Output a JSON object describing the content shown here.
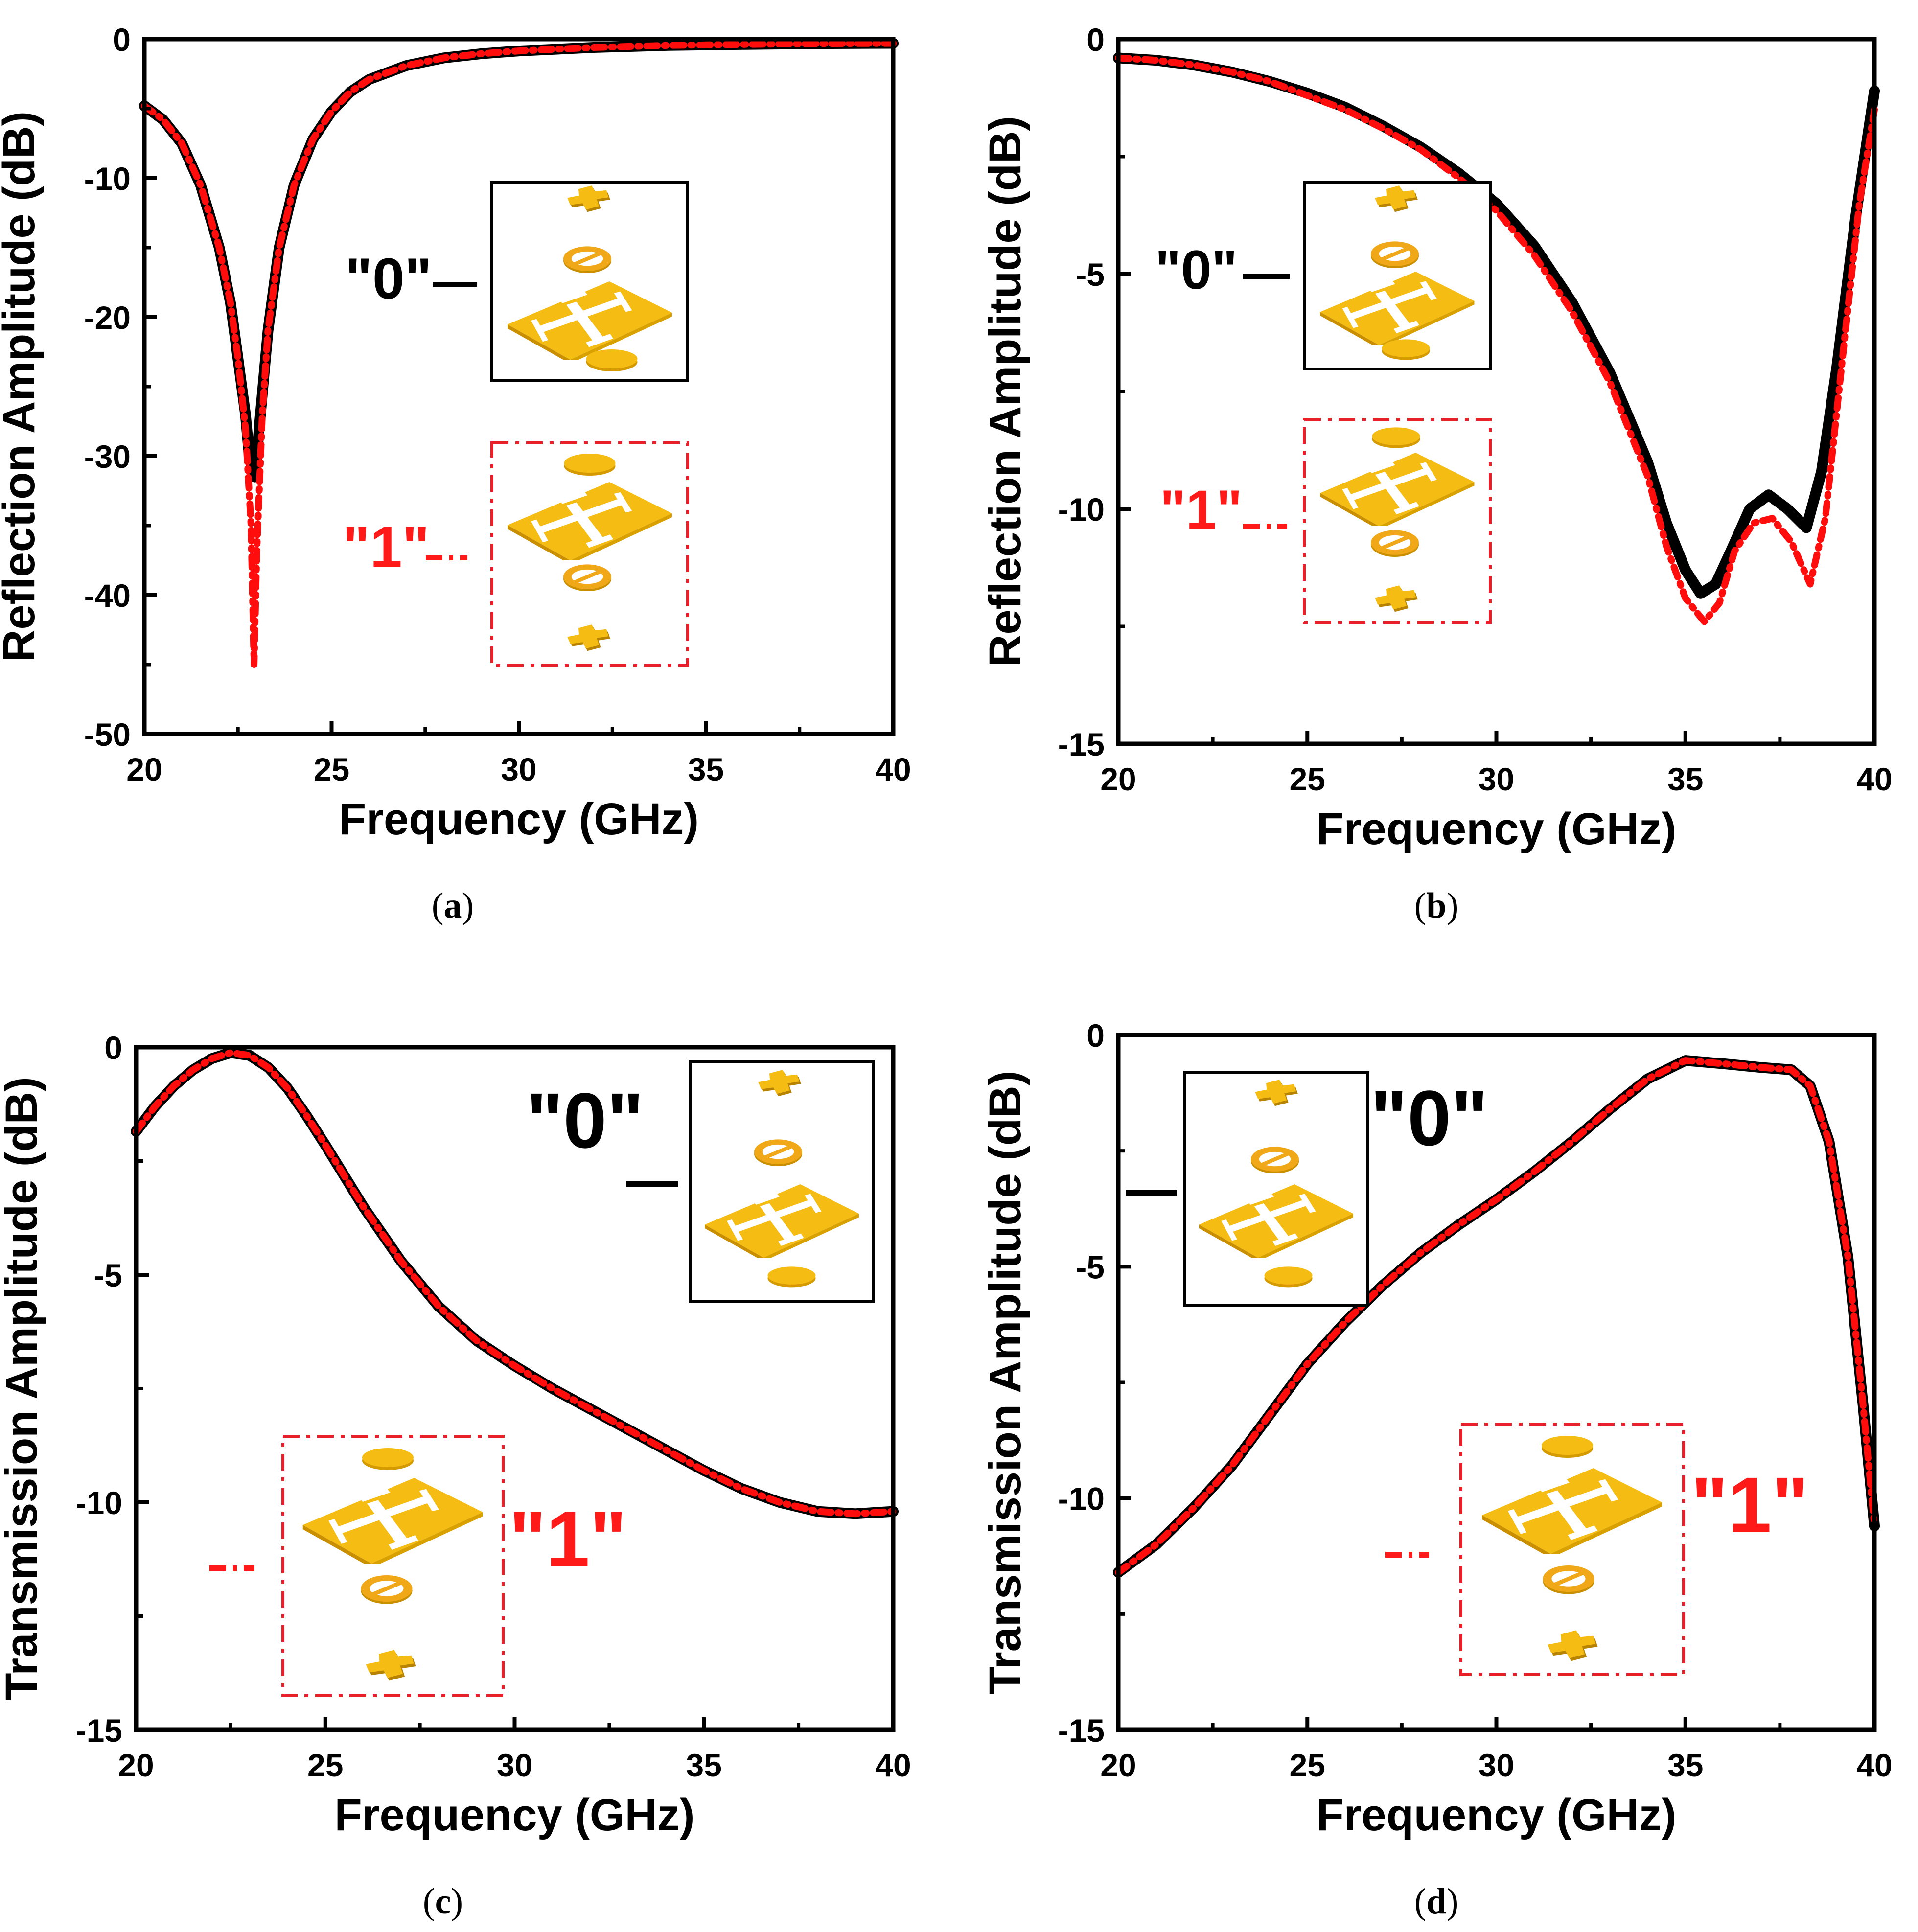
{
  "figure": {
    "colors": {
      "state0": "#000000",
      "state1": "#ff0d0d",
      "gold": "#f5bc14",
      "gold_dark": "#c98f00",
      "gold_ring": "#f0a818",
      "insert_frame1": "#e8202a"
    },
    "inset_labels": {
      "zero": "\"0\"",
      "one": "\"1\""
    },
    "inset_icons": [
      "cross-patch-icon",
      "slotted-ring-icon",
      "cross-slot-plate-icon",
      "disc-icon"
    ]
  },
  "chart_data": [
    {
      "id": "a",
      "type": "line",
      "caption_letter": "a",
      "xlabel": "Frequency (GHz)",
      "ylabel": "Reflection Amplitude (dB)",
      "xlim": [
        20,
        40
      ],
      "ylim": [
        -50,
        0
      ],
      "xticks": [
        20,
        25,
        30,
        35,
        40
      ],
      "yticks": [
        0,
        -10,
        -20,
        -30,
        -40,
        -50
      ],
      "series": [
        {
          "name": "\"0\"",
          "style": "solid",
          "points": [
            [
              20,
              -4.8
            ],
            [
              20.5,
              -5.8
            ],
            [
              21,
              -7.5
            ],
            [
              21.5,
              -10.5
            ],
            [
              22,
              -15
            ],
            [
              22.3,
              -19
            ],
            [
              22.5,
              -23
            ],
            [
              22.7,
              -27
            ],
            [
              22.8,
              -30
            ],
            [
              22.95,
              -31.5
            ],
            [
              23.1,
              -27
            ],
            [
              23.3,
              -21
            ],
            [
              23.6,
              -15
            ],
            [
              24,
              -10.5
            ],
            [
              24.5,
              -7.2
            ],
            [
              25,
              -5.2
            ],
            [
              25.5,
              -3.8
            ],
            [
              26,
              -2.9
            ],
            [
              27,
              -1.9
            ],
            [
              28,
              -1.35
            ],
            [
              29,
              -1.05
            ],
            [
              30,
              -0.85
            ],
            [
              32,
              -0.6
            ],
            [
              34,
              -0.45
            ],
            [
              36,
              -0.38
            ],
            [
              38,
              -0.32
            ],
            [
              40,
              -0.3
            ]
          ]
        },
        {
          "name": "\"1\"",
          "style": "dashdot",
          "points": [
            [
              20,
              -4.8
            ],
            [
              20.5,
              -5.8
            ],
            [
              21,
              -7.5
            ],
            [
              21.5,
              -10.5
            ],
            [
              22,
              -15
            ],
            [
              22.3,
              -19
            ],
            [
              22.5,
              -23
            ],
            [
              22.7,
              -28
            ],
            [
              22.85,
              -35
            ],
            [
              22.93,
              -45
            ],
            [
              23.0,
              -37
            ],
            [
              23.15,
              -27
            ],
            [
              23.3,
              -21
            ],
            [
              23.6,
              -15
            ],
            [
              24,
              -10.5
            ],
            [
              24.5,
              -7.2
            ],
            [
              25,
              -5.2
            ],
            [
              25.5,
              -3.8
            ],
            [
              26,
              -2.9
            ],
            [
              27,
              -1.9
            ],
            [
              28,
              -1.35
            ],
            [
              29,
              -1.05
            ],
            [
              30,
              -0.85
            ],
            [
              32,
              -0.6
            ],
            [
              34,
              -0.45
            ],
            [
              36,
              -0.38
            ],
            [
              38,
              -0.32
            ],
            [
              40,
              -0.3
            ]
          ]
        }
      ]
    },
    {
      "id": "b",
      "type": "line",
      "caption_letter": "b",
      "xlabel": "Frequency (GHz)",
      "ylabel": "Reflection Amplitude (dB)",
      "xlim": [
        20,
        40
      ],
      "ylim": [
        -15,
        0
      ],
      "xticks": [
        20,
        25,
        30,
        35,
        40
      ],
      "yticks": [
        0,
        -5,
        -10,
        -15
      ],
      "series": [
        {
          "name": "\"0\"",
          "style": "solid",
          "points": [
            [
              20,
              -0.4
            ],
            [
              21,
              -0.45
            ],
            [
              22,
              -0.55
            ],
            [
              23,
              -0.7
            ],
            [
              24,
              -0.9
            ],
            [
              25,
              -1.15
            ],
            [
              26,
              -1.45
            ],
            [
              27,
              -1.85
            ],
            [
              28,
              -2.3
            ],
            [
              29,
              -2.85
            ],
            [
              30,
              -3.5
            ],
            [
              31,
              -4.4
            ],
            [
              32,
              -5.6
            ],
            [
              33,
              -7.1
            ],
            [
              34,
              -9.0
            ],
            [
              34.5,
              -10.3
            ],
            [
              35,
              -11.3
            ],
            [
              35.4,
              -11.8
            ],
            [
              35.8,
              -11.6
            ],
            [
              36.2,
              -10.9
            ],
            [
              36.7,
              -10.0
            ],
            [
              37.2,
              -9.7
            ],
            [
              37.7,
              -10.0
            ],
            [
              38.2,
              -10.4
            ],
            [
              38.6,
              -9.2
            ],
            [
              39,
              -7.0
            ],
            [
              39.5,
              -3.8
            ],
            [
              40,
              -1.1
            ]
          ]
        },
        {
          "name": "\"1\"",
          "style": "dashdot",
          "points": [
            [
              20,
              -0.4
            ],
            [
              21,
              -0.45
            ],
            [
              22,
              -0.55
            ],
            [
              23,
              -0.7
            ],
            [
              24,
              -0.9
            ],
            [
              25,
              -1.2
            ],
            [
              26,
              -1.5
            ],
            [
              27,
              -1.9
            ],
            [
              28,
              -2.35
            ],
            [
              29,
              -2.95
            ],
            [
              30,
              -3.65
            ],
            [
              31,
              -4.6
            ],
            [
              32,
              -5.8
            ],
            [
              33,
              -7.3
            ],
            [
              34,
              -9.3
            ],
            [
              34.5,
              -10.8
            ],
            [
              35,
              -11.9
            ],
            [
              35.5,
              -12.4
            ],
            [
              35.9,
              -12.0
            ],
            [
              36.3,
              -10.9
            ],
            [
              36.8,
              -10.3
            ],
            [
              37.3,
              -10.2
            ],
            [
              37.8,
              -10.7
            ],
            [
              38.3,
              -11.6
            ],
            [
              38.7,
              -10.2
            ],
            [
              39.1,
              -7.2
            ],
            [
              39.6,
              -3.5
            ],
            [
              40,
              -1.5
            ]
          ]
        }
      ]
    },
    {
      "id": "c",
      "type": "line",
      "caption_letter": "c",
      "xlabel": "Frequency (GHz)",
      "ylabel": "Transmission Amplitude (dB)",
      "xlim": [
        20,
        40
      ],
      "ylim": [
        -15,
        0
      ],
      "xticks": [
        20,
        25,
        30,
        35,
        40
      ],
      "yticks": [
        0,
        -5,
        -10,
        -15
      ],
      "series": [
        {
          "name": "\"0\"",
          "style": "solid",
          "points": [
            [
              20,
              -1.85
            ],
            [
              20.5,
              -1.3
            ],
            [
              21,
              -0.85
            ],
            [
              21.5,
              -0.5
            ],
            [
              22,
              -0.25
            ],
            [
              22.5,
              -0.12
            ],
            [
              23,
              -0.18
            ],
            [
              23.5,
              -0.45
            ],
            [
              24,
              -0.9
            ],
            [
              24.5,
              -1.5
            ],
            [
              25,
              -2.15
            ],
            [
              26,
              -3.5
            ],
            [
              27,
              -4.7
            ],
            [
              28,
              -5.7
            ],
            [
              29,
              -6.45
            ],
            [
              30,
              -7.0
            ],
            [
              31,
              -7.5
            ],
            [
              32,
              -7.95
            ],
            [
              33,
              -8.4
            ],
            [
              34,
              -8.85
            ],
            [
              35,
              -9.3
            ],
            [
              36,
              -9.7
            ],
            [
              37,
              -10.0
            ],
            [
              38,
              -10.2
            ],
            [
              39,
              -10.25
            ],
            [
              40,
              -10.2
            ]
          ]
        },
        {
          "name": "\"1\"",
          "style": "dashdot",
          "points": [
            [
              20,
              -1.85
            ],
            [
              20.5,
              -1.3
            ],
            [
              21,
              -0.85
            ],
            [
              21.5,
              -0.5
            ],
            [
              22,
              -0.25
            ],
            [
              22.5,
              -0.12
            ],
            [
              23,
              -0.18
            ],
            [
              23.5,
              -0.45
            ],
            [
              24,
              -0.9
            ],
            [
              24.5,
              -1.5
            ],
            [
              25,
              -2.15
            ],
            [
              26,
              -3.5
            ],
            [
              27,
              -4.7
            ],
            [
              28,
              -5.7
            ],
            [
              29,
              -6.45
            ],
            [
              30,
              -7.0
            ],
            [
              31,
              -7.5
            ],
            [
              32,
              -7.95
            ],
            [
              33,
              -8.4
            ],
            [
              34,
              -8.85
            ],
            [
              35,
              -9.3
            ],
            [
              36,
              -9.7
            ],
            [
              37,
              -10.0
            ],
            [
              38,
              -10.2
            ],
            [
              39,
              -10.25
            ],
            [
              40,
              -10.2
            ]
          ]
        }
      ]
    },
    {
      "id": "d",
      "type": "line",
      "caption_letter": "d",
      "xlabel": "Frequency (GHz)",
      "ylabel": "Transmission Amplitude (dB)",
      "xlim": [
        20,
        40
      ],
      "ylim": [
        -15,
        0
      ],
      "xticks": [
        20,
        25,
        30,
        35,
        40
      ],
      "yticks": [
        0,
        -5,
        -10,
        -15
      ],
      "series": [
        {
          "name": "\"0\"",
          "style": "solid",
          "points": [
            [
              20,
              -11.6
            ],
            [
              21,
              -11.0
            ],
            [
              22,
              -10.2
            ],
            [
              23,
              -9.3
            ],
            [
              24,
              -8.2
            ],
            [
              25,
              -7.1
            ],
            [
              26,
              -6.2
            ],
            [
              27,
              -5.4
            ],
            [
              28,
              -4.7
            ],
            [
              29,
              -4.1
            ],
            [
              30,
              -3.55
            ],
            [
              31,
              -2.95
            ],
            [
              32,
              -2.3
            ],
            [
              33,
              -1.6
            ],
            [
              34,
              -0.95
            ],
            [
              35,
              -0.55
            ],
            [
              36,
              -0.62
            ],
            [
              37,
              -0.7
            ],
            [
              37.8,
              -0.75
            ],
            [
              38.3,
              -1.1
            ],
            [
              38.8,
              -2.3
            ],
            [
              39.3,
              -4.8
            ],
            [
              39.7,
              -8.0
            ],
            [
              40,
              -10.6
            ]
          ]
        },
        {
          "name": "\"1\"",
          "style": "dashdot",
          "points": [
            [
              20,
              -11.6
            ],
            [
              21,
              -11.0
            ],
            [
              22,
              -10.2
            ],
            [
              23,
              -9.3
            ],
            [
              24,
              -8.2
            ],
            [
              25,
              -7.1
            ],
            [
              26,
              -6.2
            ],
            [
              27,
              -5.4
            ],
            [
              28,
              -4.7
            ],
            [
              29,
              -4.1
            ],
            [
              30,
              -3.55
            ],
            [
              31,
              -2.95
            ],
            [
              32,
              -2.3
            ],
            [
              33,
              -1.6
            ],
            [
              34,
              -0.95
            ],
            [
              35,
              -0.55
            ],
            [
              36,
              -0.62
            ],
            [
              37,
              -0.7
            ],
            [
              37.8,
              -0.75
            ],
            [
              38.3,
              -1.1
            ],
            [
              38.8,
              -2.3
            ],
            [
              39.3,
              -4.8
            ],
            [
              39.7,
              -8.0
            ],
            [
              40,
              -10.6
            ]
          ]
        }
      ]
    }
  ]
}
